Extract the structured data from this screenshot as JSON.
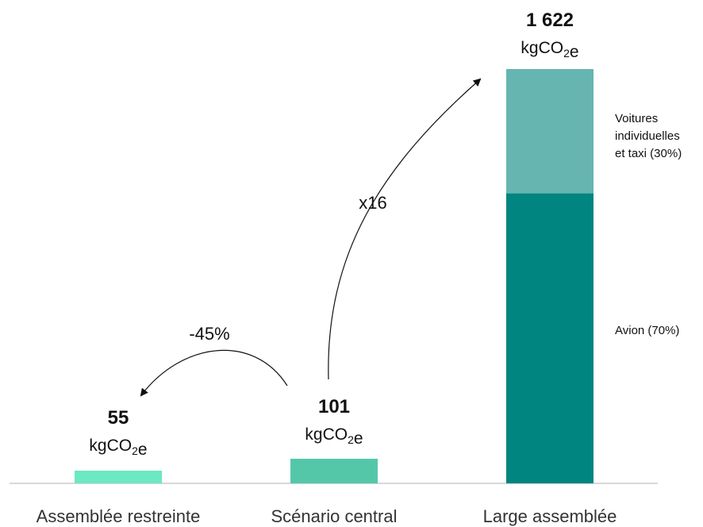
{
  "chart_data": {
    "type": "bar",
    "categories": [
      "Assemblée restreinte",
      "Scénario central",
      "Large assemblée"
    ],
    "values": [
      55,
      101,
      1622
    ],
    "value_labels": [
      "55",
      "101",
      "1 622"
    ],
    "unit": "kgCO₂e",
    "stacked_segments": [
      {
        "category": "Large assemblée",
        "label": "Avion (70%)",
        "share": 0.7
      },
      {
        "category": "Large assemblée",
        "label": "Voitures individuelles et taxi (30%)",
        "share": 0.3
      }
    ],
    "annotations": [
      {
        "from": "Scénario central",
        "to": "Assemblée restreinte",
        "text": "-45%"
      },
      {
        "from": "Scénario central",
        "to": "Large assemblée",
        "text": "x16"
      }
    ],
    "colors": {
      "Assemblée restreinte": "#6ce8c2",
      "Scénario central": "#55c7a9",
      "Large assemblée_avion": "#008580",
      "Large assemblée_voitures": "#66b5b0"
    },
    "title": "",
    "xlabel": "",
    "ylabel": "",
    "ylim": [
      0,
      1622
    ],
    "grid": false,
    "legend": "none"
  }
}
